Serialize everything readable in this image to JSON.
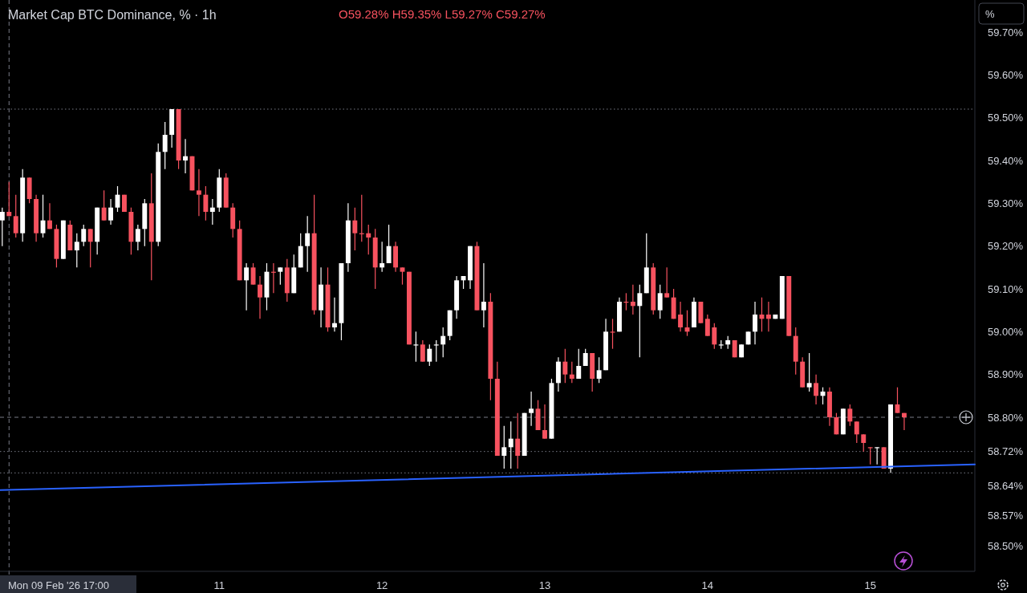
{
  "chart_data": {
    "type": "candlestick",
    "title": "Market Cap BTC Dominance, % · 1h",
    "annotations": [
      "O59.28% H59.35% L59.27% C59.27%",
      "Mon 09 Feb '26   17:00",
      "%"
    ],
    "x": [
      "2026-02-09T16:00",
      "2026-02-09T17:00",
      "2026-02-09T18:00",
      "2026-02-09T19:00",
      "2026-02-09T20:00",
      "2026-02-09T21:00",
      "2026-02-09T22:00",
      "2026-02-09T23:00",
      "2026-02-10T00:00",
      "2026-02-10T01:00",
      "2026-02-10T02:00",
      "2026-02-10T03:00",
      "2026-02-10T04:00",
      "2026-02-10T05:00",
      "2026-02-10T06:00",
      "2026-02-10T07:00",
      "2026-02-10T08:00",
      "2026-02-10T09:00",
      "2026-02-10T10:00",
      "2026-02-10T11:00",
      "2026-02-10T12:00",
      "2026-02-10T13:00",
      "2026-02-10T14:00",
      "2026-02-10T15:00",
      "2026-02-10T16:00",
      "2026-02-10T17:00",
      "2026-02-10T18:00",
      "2026-02-10T19:00",
      "2026-02-10T20:00",
      "2026-02-10T21:00",
      "2026-02-10T22:00",
      "2026-02-10T23:00",
      "2026-02-11T00:00",
      "2026-02-11T01:00",
      "2026-02-11T02:00",
      "2026-02-11T03:00",
      "2026-02-11T04:00",
      "2026-02-11T05:00",
      "2026-02-11T06:00",
      "2026-02-11T07:00",
      "2026-02-11T08:00",
      "2026-02-11T09:00",
      "2026-02-11T10:00",
      "2026-02-11T11:00",
      "2026-02-11T12:00",
      "2026-02-11T13:00",
      "2026-02-11T14:00",
      "2026-02-11T15:00",
      "2026-02-11T16:00",
      "2026-02-11T17:00",
      "2026-02-11T18:00",
      "2026-02-11T19:00",
      "2026-02-11T20:00",
      "2026-02-11T21:00",
      "2026-02-11T22:00",
      "2026-02-11T23:00",
      "2026-02-12T00:00",
      "2026-02-12T01:00",
      "2026-02-12T02:00",
      "2026-02-12T03:00",
      "2026-02-12T04:00",
      "2026-02-12T05:00",
      "2026-02-12T06:00",
      "2026-02-12T07:00",
      "2026-02-12T08:00",
      "2026-02-12T09:00",
      "2026-02-12T10:00",
      "2026-02-12T11:00",
      "2026-02-12T12:00",
      "2026-02-12T13:00",
      "2026-02-12T14:00",
      "2026-02-12T15:00",
      "2026-02-12T16:00",
      "2026-02-12T17:00",
      "2026-02-12T18:00",
      "2026-02-12T19:00",
      "2026-02-12T20:00",
      "2026-02-12T21:00",
      "2026-02-12T22:00",
      "2026-02-12T23:00",
      "2026-02-13T00:00",
      "2026-02-13T01:00",
      "2026-02-13T02:00",
      "2026-02-13T03:00",
      "2026-02-13T04:00",
      "2026-02-13T05:00",
      "2026-02-13T06:00",
      "2026-02-13T07:00",
      "2026-02-13T08:00",
      "2026-02-13T09:00",
      "2026-02-13T10:00",
      "2026-02-13T11:00",
      "2026-02-13T12:00",
      "2026-02-13T13:00",
      "2026-02-13T14:00",
      "2026-02-13T15:00",
      "2026-02-13T16:00",
      "2026-02-13T17:00",
      "2026-02-13T18:00",
      "2026-02-13T19:00",
      "2026-02-13T20:00",
      "2026-02-13T21:00",
      "2026-02-13T22:00",
      "2026-02-13T23:00",
      "2026-02-14T00:00",
      "2026-02-14T01:00",
      "2026-02-14T02:00",
      "2026-02-14T03:00",
      "2026-02-14T04:00",
      "2026-02-14T05:00",
      "2026-02-14T06:00",
      "2026-02-14T07:00",
      "2026-02-14T08:00",
      "2026-02-14T09:00",
      "2026-02-14T10:00",
      "2026-02-14T11:00",
      "2026-02-14T12:00",
      "2026-02-14T13:00",
      "2026-02-14T14:00",
      "2026-02-14T15:00",
      "2026-02-14T16:00",
      "2026-02-14T17:00",
      "2026-02-14T18:00",
      "2026-02-14T19:00",
      "2026-02-14T20:00",
      "2026-02-14T21:00",
      "2026-02-14T22:00",
      "2026-02-14T23:00",
      "2026-02-15T00:00",
      "2026-02-15T01:00",
      "2026-02-15T02:00",
      "2026-02-15T03:00",
      "2026-02-15T04:00",
      "2026-02-15T05:00"
    ],
    "ohlc": [
      [
        59.26,
        59.29,
        59.2,
        59.28
      ],
      [
        59.28,
        59.35,
        59.27,
        59.27
      ],
      [
        59.27,
        59.32,
        59.22,
        59.23
      ],
      [
        59.23,
        59.38,
        59.21,
        59.36
      ],
      [
        59.36,
        59.36,
        59.3,
        59.31
      ],
      [
        59.31,
        59.32,
        59.21,
        59.23
      ],
      [
        59.23,
        59.32,
        59.22,
        59.26
      ],
      [
        59.26,
        59.3,
        59.24,
        59.24
      ],
      [
        59.24,
        59.25,
        59.15,
        59.17
      ],
      [
        59.17,
        59.26,
        59.17,
        59.26
      ],
      [
        59.25,
        59.26,
        59.19,
        59.19
      ],
      [
        59.19,
        59.23,
        59.15,
        59.21
      ],
      [
        59.21,
        59.25,
        59.2,
        59.24
      ],
      [
        59.24,
        59.24,
        59.15,
        59.21
      ],
      [
        59.21,
        59.29,
        59.18,
        59.29
      ],
      [
        59.29,
        59.33,
        59.26,
        59.26
      ],
      [
        59.26,
        59.31,
        59.25,
        59.29
      ],
      [
        59.29,
        59.34,
        59.28,
        59.32
      ],
      [
        59.32,
        59.32,
        59.28,
        59.28
      ],
      [
        59.28,
        59.29,
        59.18,
        59.21
      ],
      [
        59.21,
        59.25,
        59.19,
        59.24
      ],
      [
        59.24,
        59.31,
        59.2,
        59.3
      ],
      [
        59.3,
        59.37,
        59.12,
        59.21
      ],
      [
        59.21,
        59.44,
        59.2,
        59.42
      ],
      [
        59.42,
        59.49,
        59.38,
        59.46
      ],
      [
        59.46,
        59.52,
        59.43,
        59.52
      ],
      [
        59.52,
        59.52,
        59.38,
        59.4
      ],
      [
        59.4,
        59.45,
        59.37,
        59.41
      ],
      [
        59.41,
        59.41,
        59.33,
        59.33
      ],
      [
        59.33,
        59.38,
        59.27,
        59.32
      ],
      [
        59.32,
        59.34,
        59.26,
        59.28
      ],
      [
        59.28,
        59.31,
        59.25,
        59.29
      ],
      [
        59.29,
        59.38,
        59.28,
        59.36
      ],
      [
        59.36,
        59.37,
        59.29,
        59.29
      ],
      [
        59.29,
        59.3,
        59.22,
        59.24
      ],
      [
        59.24,
        59.26,
        59.12,
        59.12
      ],
      [
        59.12,
        59.16,
        59.05,
        59.15
      ],
      [
        59.15,
        59.16,
        59.11,
        59.11
      ],
      [
        59.11,
        59.13,
        59.03,
        59.08
      ],
      [
        59.08,
        59.16,
        59.05,
        59.14
      ],
      [
        59.14,
        59.16,
        59.09,
        59.14
      ],
      [
        59.14,
        59.15,
        59.11,
        59.15
      ],
      [
        59.15,
        59.17,
        59.07,
        59.09
      ],
      [
        59.09,
        59.18,
        59.09,
        59.15
      ],
      [
        59.15,
        59.23,
        59.15,
        59.2
      ],
      [
        59.2,
        59.27,
        59.14,
        59.23
      ],
      [
        59.23,
        59.32,
        59.04,
        59.05
      ],
      [
        59.05,
        59.15,
        59.01,
        59.11
      ],
      [
        59.11,
        59.15,
        59.0,
        59.01
      ],
      [
        59.01,
        59.08,
        59.0,
        59.02
      ],
      [
        59.02,
        59.16,
        58.98,
        59.16
      ],
      [
        59.16,
        59.3,
        59.14,
        59.26
      ],
      [
        59.26,
        59.29,
        59.19,
        59.23
      ],
      [
        59.23,
        59.32,
        59.21,
        59.23
      ],
      [
        59.23,
        59.25,
        59.18,
        59.22
      ],
      [
        59.22,
        59.24,
        59.1,
        59.15
      ],
      [
        59.15,
        59.21,
        59.14,
        59.16
      ],
      [
        59.16,
        59.25,
        59.16,
        59.2
      ],
      [
        59.2,
        59.21,
        59.14,
        59.15
      ],
      [
        59.15,
        59.15,
        59.11,
        59.14
      ],
      [
        59.14,
        59.14,
        58.97,
        58.97
      ],
      [
        58.97,
        59.0,
        58.93,
        58.97
      ],
      [
        58.97,
        58.98,
        58.93,
        58.93
      ],
      [
        58.93,
        58.97,
        58.92,
        58.96
      ],
      [
        58.97,
        58.98,
        58.93,
        58.97
      ],
      [
        58.97,
        59.01,
        58.94,
        58.99
      ],
      [
        58.99,
        59.05,
        58.98,
        59.05
      ],
      [
        59.05,
        59.13,
        59.03,
        59.12
      ],
      [
        59.12,
        59.13,
        59.1,
        59.13
      ],
      [
        59.12,
        59.2,
        59.1,
        59.2
      ],
      [
        59.2,
        59.21,
        59.05,
        59.05
      ],
      [
        59.05,
        59.16,
        59.01,
        59.07
      ],
      [
        59.07,
        59.09,
        58.84,
        58.89
      ],
      [
        58.89,
        58.93,
        58.71,
        58.71
      ],
      [
        58.71,
        58.78,
        58.68,
        58.73
      ],
      [
        58.73,
        58.79,
        58.68,
        58.75
      ],
      [
        58.75,
        58.81,
        58.68,
        58.71
      ],
      [
        58.71,
        58.81,
        58.71,
        58.81
      ],
      [
        58.81,
        58.86,
        58.78,
        58.82
      ],
      [
        58.82,
        58.84,
        58.77,
        58.77
      ],
      [
        58.77,
        58.83,
        58.75,
        58.75
      ],
      [
        58.75,
        58.89,
        58.75,
        58.88
      ],
      [
        58.88,
        58.94,
        58.86,
        58.93
      ],
      [
        58.93,
        58.96,
        58.88,
        58.9
      ],
      [
        58.9,
        58.93,
        58.88,
        58.89
      ],
      [
        58.89,
        58.96,
        58.89,
        58.92
      ],
      [
        58.92,
        58.96,
        58.92,
        58.95
      ],
      [
        58.95,
        58.95,
        58.86,
        58.89
      ],
      [
        58.89,
        58.94,
        58.88,
        58.91
      ],
      [
        58.91,
        59.03,
        58.91,
        59.0
      ],
      [
        59.0,
        59.03,
        58.96,
        59.0
      ],
      [
        59.0,
        59.08,
        59.0,
        59.07
      ],
      [
        59.07,
        59.09,
        59.05,
        59.07
      ],
      [
        59.07,
        59.11,
        59.04,
        59.06
      ],
      [
        59.06,
        59.11,
        58.94,
        59.09
      ],
      [
        59.09,
        59.23,
        59.09,
        59.15
      ],
      [
        59.15,
        59.16,
        59.04,
        59.05
      ],
      [
        59.05,
        59.11,
        59.03,
        59.09
      ],
      [
        59.09,
        59.15,
        59.08,
        59.08
      ],
      [
        59.08,
        59.1,
        59.03,
        59.03
      ],
      [
        59.04,
        59.07,
        59.0,
        59.01
      ],
      [
        59.01,
        59.05,
        58.99,
        59.0
      ],
      [
        59.01,
        59.08,
        59.01,
        59.07
      ],
      [
        59.07,
        59.07,
        59.02,
        59.02
      ],
      [
        59.03,
        59.04,
        58.99,
        58.99
      ],
      [
        59.01,
        59.02,
        58.96,
        58.97
      ],
      [
        58.97,
        58.98,
        58.96,
        58.97
      ],
      [
        58.97,
        58.99,
        58.96,
        58.98
      ],
      [
        58.98,
        58.98,
        58.94,
        58.94
      ],
      [
        58.94,
        58.97,
        58.94,
        58.97
      ],
      [
        58.97,
        59.0,
        58.97,
        59.0
      ],
      [
        59.0,
        59.07,
        58.97,
        59.04
      ],
      [
        59.04,
        59.08,
        59.0,
        59.03
      ],
      [
        59.04,
        59.07,
        59.0,
        59.03
      ],
      [
        59.03,
        59.04,
        59.03,
        59.04
      ],
      [
        59.03,
        59.13,
        59.03,
        59.13
      ],
      [
        59.13,
        59.13,
        58.99,
        58.99
      ],
      [
        58.99,
        59.01,
        58.9,
        58.93
      ],
      [
        58.93,
        58.94,
        58.87,
        58.87
      ],
      [
        58.87,
        58.95,
        58.86,
        58.88
      ],
      [
        58.88,
        58.9,
        58.83,
        58.85
      ],
      [
        58.85,
        58.87,
        58.83,
        58.86
      ],
      [
        58.86,
        58.87,
        58.78,
        58.8
      ],
      [
        58.8,
        58.81,
        58.76,
        58.76
      ],
      [
        58.76,
        58.82,
        58.76,
        58.82
      ],
      [
        58.82,
        58.83,
        58.78,
        58.79
      ],
      [
        58.79,
        58.79,
        58.74,
        58.76
      ],
      [
        58.76,
        58.76,
        58.72,
        58.74
      ],
      [
        58.73,
        58.73,
        58.69,
        58.73
      ],
      [
        58.73,
        58.73,
        58.69,
        58.73
      ],
      [
        58.73,
        58.73,
        58.68,
        58.68
      ],
      [
        58.68,
        58.83,
        58.67,
        58.83
      ],
      [
        58.83,
        58.87,
        58.81,
        58.81
      ],
      [
        58.81,
        58.81,
        58.77,
        58.8
      ]
    ],
    "colors": [
      "#ffffff",
      "#f7525f",
      "#f7525f",
      "#ffffff",
      "#f7525f",
      "#f7525f",
      "#ffffff",
      "#f7525f",
      "#f7525f",
      "#ffffff",
      "#f7525f",
      "#ffffff",
      "#ffffff",
      "#f7525f",
      "#ffffff",
      "#f7525f",
      "#ffffff",
      "#ffffff",
      "#f7525f",
      "#f7525f",
      "#ffffff",
      "#ffffff",
      "#f7525f",
      "#ffffff",
      "#ffffff",
      "#ffffff",
      "#f7525f",
      "#ffffff",
      "#f7525f",
      "#f7525f",
      "#f7525f",
      "#ffffff",
      "#ffffff",
      "#f7525f",
      "#f7525f",
      "#f7525f",
      "#ffffff",
      "#f7525f",
      "#f7525f",
      "#ffffff",
      "#f7525f",
      "#ffffff",
      "#f7525f",
      "#ffffff",
      "#ffffff",
      "#ffffff",
      "#f7525f",
      "#ffffff",
      "#f7525f",
      "#ffffff",
      "#ffffff",
      "#ffffff",
      "#f7525f",
      "#f7525f",
      "#f7525f",
      "#f7525f",
      "#ffffff",
      "#ffffff",
      "#f7525f",
      "#f7525f",
      "#f7525f",
      "#ffffff",
      "#f7525f",
      "#ffffff",
      "#ffffff",
      "#ffffff",
      "#ffffff",
      "#ffffff",
      "#ffffff",
      "#ffffff",
      "#f7525f",
      "#ffffff",
      "#f7525f",
      "#f7525f",
      "#ffffff",
      "#ffffff",
      "#f7525f",
      "#ffffff",
      "#ffffff",
      "#f7525f",
      "#f7525f",
      "#ffffff",
      "#ffffff",
      "#f7525f",
      "#f7525f",
      "#ffffff",
      "#ffffff",
      "#f7525f",
      "#ffffff",
      "#ffffff",
      "#f7525f",
      "#ffffff",
      "#f7525f",
      "#f7525f",
      "#ffffff",
      "#ffffff",
      "#f7525f",
      "#ffffff",
      "#f7525f",
      "#f7525f",
      "#f7525f",
      "#f7525f",
      "#ffffff",
      "#f7525f",
      "#f7525f",
      "#f7525f",
      "#ffffff",
      "#ffffff",
      "#f7525f",
      "#ffffff",
      "#ffffff",
      "#ffffff",
      "#f7525f",
      "#f7525f",
      "#ffffff",
      "#ffffff",
      "#f7525f",
      "#f7525f",
      "#f7525f",
      "#ffffff",
      "#f7525f",
      "#ffffff",
      "#f7525f",
      "#f7525f",
      "#ffffff",
      "#f7525f",
      "#f7525f",
      "#f7525f",
      "#f7525f",
      "#ffffff",
      "#f7525f",
      "#ffffff",
      "#f7525f",
      "#f7525f"
    ],
    "series": [
      {
        "type": "line",
        "color": "#2962ff",
        "x": [
          "2026-02-09T15:40",
          "2026-02-15T15:25"
        ],
        "values": [
          58.63,
          58.69
        ]
      }
    ],
    "ref_lines": [
      {
        "axis": "x",
        "value": "2026-02-09T17:00",
        "color": "#787b86",
        "line_style": "dashed"
      },
      {
        "axis": "y",
        "value": 59.52,
        "color": "#787b86",
        "line_style": "dotted"
      },
      {
        "axis": "y",
        "value": 58.72,
        "color": "#787b86",
        "line_style": "dotted"
      },
      {
        "axis": "y",
        "value": 58.67,
        "color": "#787b86",
        "line_style": "dotted"
      },
      {
        "axis": "y",
        "value": 58.8,
        "label": "58.80%",
        "color": "#787b86",
        "line_style": "dashed"
      }
    ],
    "xlim": [
      "2026-02-09T15:40",
      "2026-02-15T15:25"
    ],
    "xticks": [
      {
        "value": "2026-02-11T00:00",
        "label": "11"
      },
      {
        "value": "2026-02-12T00:00",
        "label": "12"
      },
      {
        "value": "2026-02-13T00:00",
        "label": "13"
      },
      {
        "value": "2026-02-14T00:00",
        "label": "14"
      },
      {
        "value": "2026-02-15T00:00",
        "label": "15"
      }
    ],
    "ylim": [
      58.44,
      59.775
    ],
    "yticks": [
      {
        "value": 59.7,
        "label": "59.70%"
      },
      {
        "value": 59.6,
        "label": "59.60%"
      },
      {
        "value": 59.5,
        "label": "59.50%"
      },
      {
        "value": 59.4,
        "label": "59.40%"
      },
      {
        "value": 59.3,
        "label": "59.30%"
      },
      {
        "value": 59.2,
        "label": "59.20%"
      },
      {
        "value": 59.1,
        "label": "59.10%"
      },
      {
        "value": 59.0,
        "label": "59.00%"
      },
      {
        "value": 58.9,
        "label": "58.90%"
      },
      {
        "value": 58.72,
        "label": "58.72%"
      },
      {
        "value": 58.64,
        "label": "58.64%"
      },
      {
        "value": 58.57,
        "label": "58.57%"
      },
      {
        "value": 58.5,
        "label": "58.50%"
      }
    ],
    "grid": false
  }
}
